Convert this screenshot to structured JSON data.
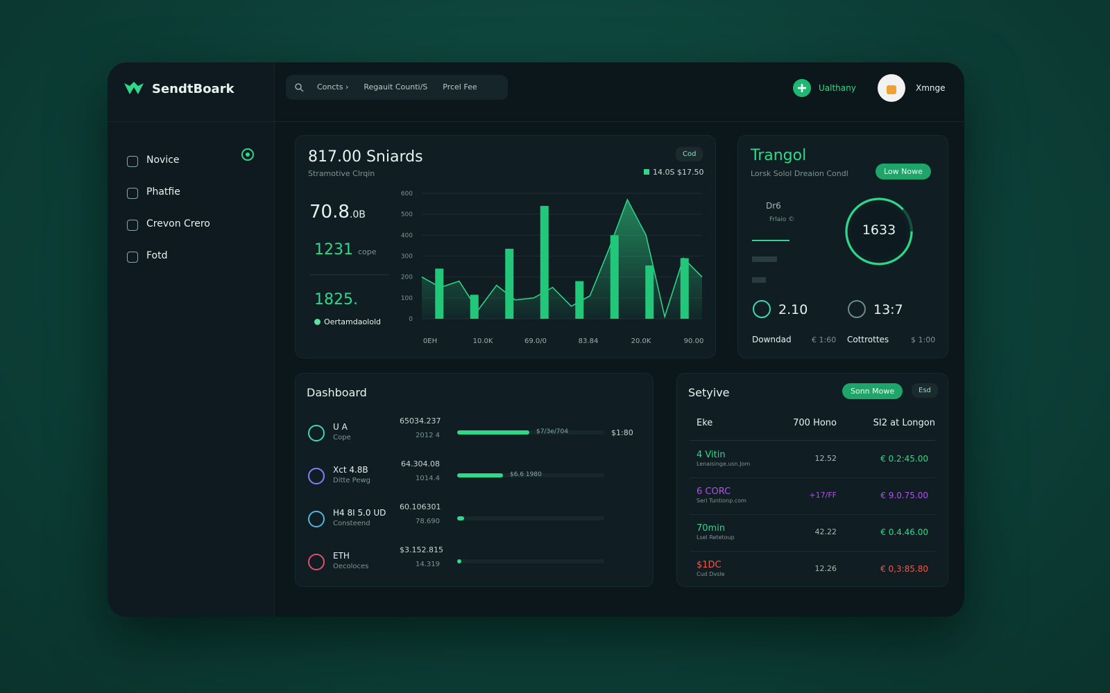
{
  "brand": "SendtBoark",
  "search": [
    "Concts ›",
    "Regauit Counti/S",
    "Prcel Fee"
  ],
  "header": {
    "action": "Ualthany",
    "user": "Xmnge"
  },
  "nav": [
    "Novice",
    "Phatfie",
    "Crevon Crero",
    "Fotd"
  ],
  "main_card": {
    "title": "817.00 Sniards",
    "subtitle": "Stramotive Clrqin",
    "button": "Cod",
    "legend": "14.0S $17.50",
    "stats": [
      {
        "value": "70.8",
        "unit": ".0B"
      },
      {
        "value": "1231",
        "unit": "cope"
      },
      {
        "value": "1825."
      }
    ],
    "note": "Oertamdaolold"
  },
  "chart_data": {
    "type": "bar",
    "x_labels": [
      "0EH",
      "10.0K",
      "69.0/0",
      "83.84",
      "20.0K",
      "90.00"
    ],
    "bars": {
      "color": "#22c77a",
      "values": [
        240,
        115,
        335,
        540,
        180,
        400,
        255,
        290
      ]
    },
    "area": {
      "color": "#2fd98a",
      "values": [
        200,
        150,
        180,
        40,
        160,
        90,
        100,
        150,
        60,
        110,
        330,
        570,
        400,
        10,
        290,
        200
      ]
    },
    "ylim": [
      0,
      600
    ],
    "yticks": [
      0,
      100,
      200,
      300,
      400,
      500,
      600
    ]
  },
  "side_card": {
    "title": "Trangol",
    "subtitle": "Lorsk Solol Dreaion Condl",
    "button": "Low Nowe",
    "items": [
      "Dr6",
      "Frlaio ©"
    ],
    "ring": "1633",
    "stats": [
      "2.10",
      "13:7"
    ],
    "footer": [
      "Downdad",
      "€ 1:60",
      "Cottrottes",
      "$ 1:00"
    ]
  },
  "dashboard": {
    "title": "Dashboard",
    "rows": [
      {
        "name": "U A",
        "sub": "Cope",
        "amount": "65034.237",
        "amount_sub": "2012 4",
        "tag": "$7/3e/704",
        "end": "$1:80",
        "color": "#3fd6b8"
      },
      {
        "name": "Xct 4.8B",
        "sub": "Ditte Pewg",
        "amount": "64.304.08",
        "amount_sub": "1014.4",
        "tag": "$6.6 1980",
        "color": "#8a7cff"
      },
      {
        "name": "H4 8I 5.0 UD",
        "sub": "Consteend",
        "amount": "60.106301",
        "amount_sub": "78.690",
        "color": "#4fb8e0"
      },
      {
        "name": "ETH",
        "sub": "Oecoloces",
        "amount": "$3.152.815",
        "amount_sub": "14.319",
        "color": "#e0506a"
      }
    ]
  },
  "table": {
    "title": "Setyive",
    "button": "Sonn Mowe",
    "button2": "Esd",
    "headers": [
      "Eke",
      "700 Hono",
      "SI2 at Longon"
    ],
    "rows": [
      {
        "name": "4 Vitin",
        "sub": "Lenaisinge.usn.Jom",
        "mid": "12.52",
        "amount": "€ 0.2:45.00",
        "color": "#2fd98a"
      },
      {
        "name": "6 CORC",
        "sub": "Seri Tuntionp.com",
        "mid": "+17/FF",
        "amount": "€ 9.0.75.00",
        "color": "#b052e8"
      },
      {
        "name": "70min",
        "sub": "Lsel Retetoup",
        "mid": "42.22",
        "amount": "€ 0.4.46.00",
        "color": "#2fd98a"
      },
      {
        "name": "$1DC",
        "sub": "Cud Dvsle",
        "mid": "12.26",
        "amount": "€ 0,3:85.80",
        "color": "#ef5a4a"
      }
    ]
  }
}
